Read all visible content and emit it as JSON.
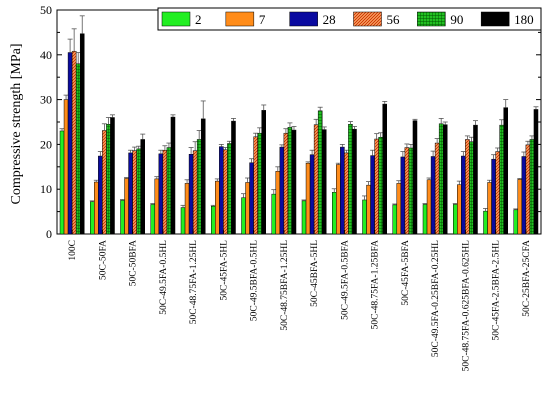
{
  "chart_data": {
    "type": "bar",
    "ylabel": "Compressive strength [MPa]",
    "ylim": [
      0,
      50
    ],
    "yticks": [
      0,
      10,
      20,
      30,
      40,
      50
    ],
    "legend_position": "top-right",
    "categories": [
      "100C",
      "50C-50FA",
      "50C-50BFA",
      "50C-49.5FA-0.5HL",
      "50C-48.75FA-1.25HL",
      "50C-45FA-5HL",
      "50C-49.5BFA-0.5HL",
      "50C-48.75BFA-1.25HL",
      "50C-45BFA-5HL",
      "50C-49.5FA-0.5BFA",
      "50C-48.75FA-1.25BFA",
      "50C-45FA-5BFA",
      "50C-49.5FA-0.25BFA-0.25HL",
      "50C-48.75FA-0.625BFA-0.625HL",
      "50C-45FA-2.5BFA-2.5HL",
      "50C-25BFA-25CFA"
    ],
    "series": [
      {
        "name": "2",
        "color": "#22ee22",
        "pattern": "solid",
        "values": [
          23,
          7.2,
          7.5,
          6.6,
          5.9,
          6.2,
          8.1,
          8.9,
          7.4,
          9.3,
          7.6,
          6.5,
          6.6,
          6.6,
          5.1,
          5.4
        ],
        "errors": [
          0.5,
          0.2,
          0.2,
          0.2,
          0.5,
          0.2,
          0.9,
          1.0,
          0.2,
          0.8,
          0.9,
          0.2,
          0.2,
          0.2,
          0.6,
          0.2
        ]
      },
      {
        "name": "7",
        "color": "#ff8c1a",
        "pattern": "solid",
        "values": [
          30,
          11.6,
          12.4,
          12.3,
          11.3,
          11.8,
          11.5,
          14,
          15.8,
          15.5,
          10.9,
          11.3,
          12.1,
          11,
          11.5,
          12.2
        ],
        "errors": [
          1.0,
          0.4,
          0.2,
          0.5,
          0.8,
          0.5,
          1.0,
          1.0,
          0.3,
          0.3,
          0.8,
          0.6,
          0.4,
          0.8,
          0.5,
          0.2
        ]
      },
      {
        "name": "28",
        "color": "#0a0aa0",
        "pattern": "solid",
        "values": [
          40.5,
          17.4,
          18.1,
          17.9,
          17.8,
          19.5,
          15.9,
          19.4,
          17.7,
          19.4,
          17.5,
          17.2,
          17.3,
          17.4,
          16.7,
          17.3
        ],
        "errors": [
          3.0,
          1.0,
          0.6,
          0.8,
          1.5,
          0.5,
          0.9,
          0.5,
          1.0,
          0.6,
          1.2,
          1.2,
          1.2,
          1.0,
          1.0,
          1.0
        ]
      },
      {
        "name": "56",
        "color": "#e06010",
        "pattern": "hatch",
        "values": [
          40.8,
          23.1,
          18.6,
          18.7,
          18.6,
          18.8,
          21.7,
          22.5,
          24.4,
          18.1,
          21.2,
          19.3,
          20.3,
          21.1,
          18.4,
          19.9
        ],
        "errors": [
          5.0,
          1.5,
          0.8,
          1.0,
          2.0,
          0.5,
          0.8,
          1.0,
          1.2,
          0.6,
          1.2,
          0.8,
          1.0,
          0.8,
          0.8,
          0.8
        ]
      },
      {
        "name": "90",
        "color": "#1aa01a",
        "pattern": "grid",
        "values": [
          38,
          24.5,
          19,
          19.3,
          21.1,
          20.2,
          22.5,
          23.8,
          27.5,
          24.5,
          21.6,
          19.2,
          24.6,
          20.6,
          24.3,
          21.1
        ],
        "errors": [
          2.5,
          1.5,
          0.6,
          1.0,
          2.0,
          0.5,
          1.2,
          1.0,
          0.8,
          0.6,
          1.0,
          0.8,
          1.2,
          1.0,
          1.2,
          0.8
        ]
      },
      {
        "name": "180",
        "color": "#000000",
        "pattern": "solid",
        "values": [
          44.7,
          26,
          21.1,
          26.1,
          25.7,
          25.2,
          27.6,
          23.2,
          23.3,
          23.4,
          29,
          25.3,
          24.4,
          24.3,
          28.2,
          27.8
        ],
        "errors": [
          4.0,
          0.6,
          1.2,
          0.5,
          4.0,
          0.6,
          1.2,
          0.8,
          0.6,
          0.6,
          0.6,
          0.3,
          0.6,
          1.0,
          1.8,
          0.6
        ]
      }
    ]
  }
}
